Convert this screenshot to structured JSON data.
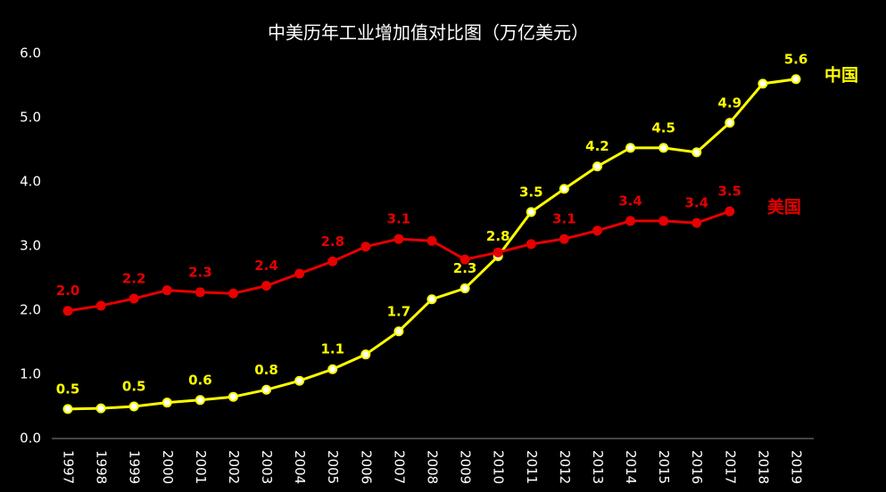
{
  "chart_data": {
    "type": "line",
    "title": "中美历年工业增加值对比图（万亿美元）",
    "categories": [
      "1997",
      "1998",
      "1999",
      "2000",
      "2001",
      "2002",
      "2003",
      "2004",
      "2005",
      "2006",
      "2007",
      "2008",
      "2009",
      "2010",
      "2011",
      "2012",
      "2013",
      "2014",
      "2015",
      "2016",
      "2017",
      "2018",
      "2019"
    ],
    "series": [
      {
        "name": "中国",
        "color": "#ffff00",
        "values": [
          0.46,
          0.47,
          0.5,
          0.56,
          0.6,
          0.65,
          0.76,
          0.9,
          1.08,
          1.31,
          1.67,
          2.17,
          2.34,
          2.84,
          3.53,
          3.89,
          4.24,
          4.53,
          4.53,
          4.46,
          4.92,
          5.53,
          5.6
        ],
        "value_labels": [
          "0.5",
          null,
          "0.5",
          null,
          "0.6",
          null,
          "0.8",
          null,
          "1.1",
          null,
          "1.7",
          null,
          "2.3",
          "2.8",
          "3.5",
          null,
          "4.2",
          null,
          "4.5",
          null,
          "4.9",
          null,
          "5.6"
        ]
      },
      {
        "name": "美国",
        "color": "#e60000",
        "values": [
          1.99,
          2.07,
          2.18,
          2.31,
          2.28,
          2.26,
          2.38,
          2.57,
          2.76,
          2.99,
          3.11,
          3.08,
          2.79,
          2.9,
          3.03,
          3.11,
          3.24,
          3.39,
          3.39,
          3.36,
          3.54,
          null,
          null
        ],
        "value_labels": [
          "2.0",
          null,
          "2.2",
          null,
          "2.3",
          null,
          "2.4",
          null,
          "2.8",
          null,
          "3.1",
          null,
          null,
          null,
          null,
          "3.1",
          null,
          "3.4",
          null,
          "3.4",
          "3.5",
          null,
          null
        ]
      }
    ],
    "ylim": [
      0,
      6
    ],
    "yticks": [
      {
        "value": 0,
        "label": "0.0"
      },
      {
        "value": 1,
        "label": "1.0"
      },
      {
        "value": 2,
        "label": "2.0"
      },
      {
        "value": 3,
        "label": "3.0"
      },
      {
        "value": 4,
        "label": "4.0"
      },
      {
        "value": 5,
        "label": "5.0"
      },
      {
        "value": 6,
        "label": "6.0"
      }
    ],
    "grid": false
  }
}
